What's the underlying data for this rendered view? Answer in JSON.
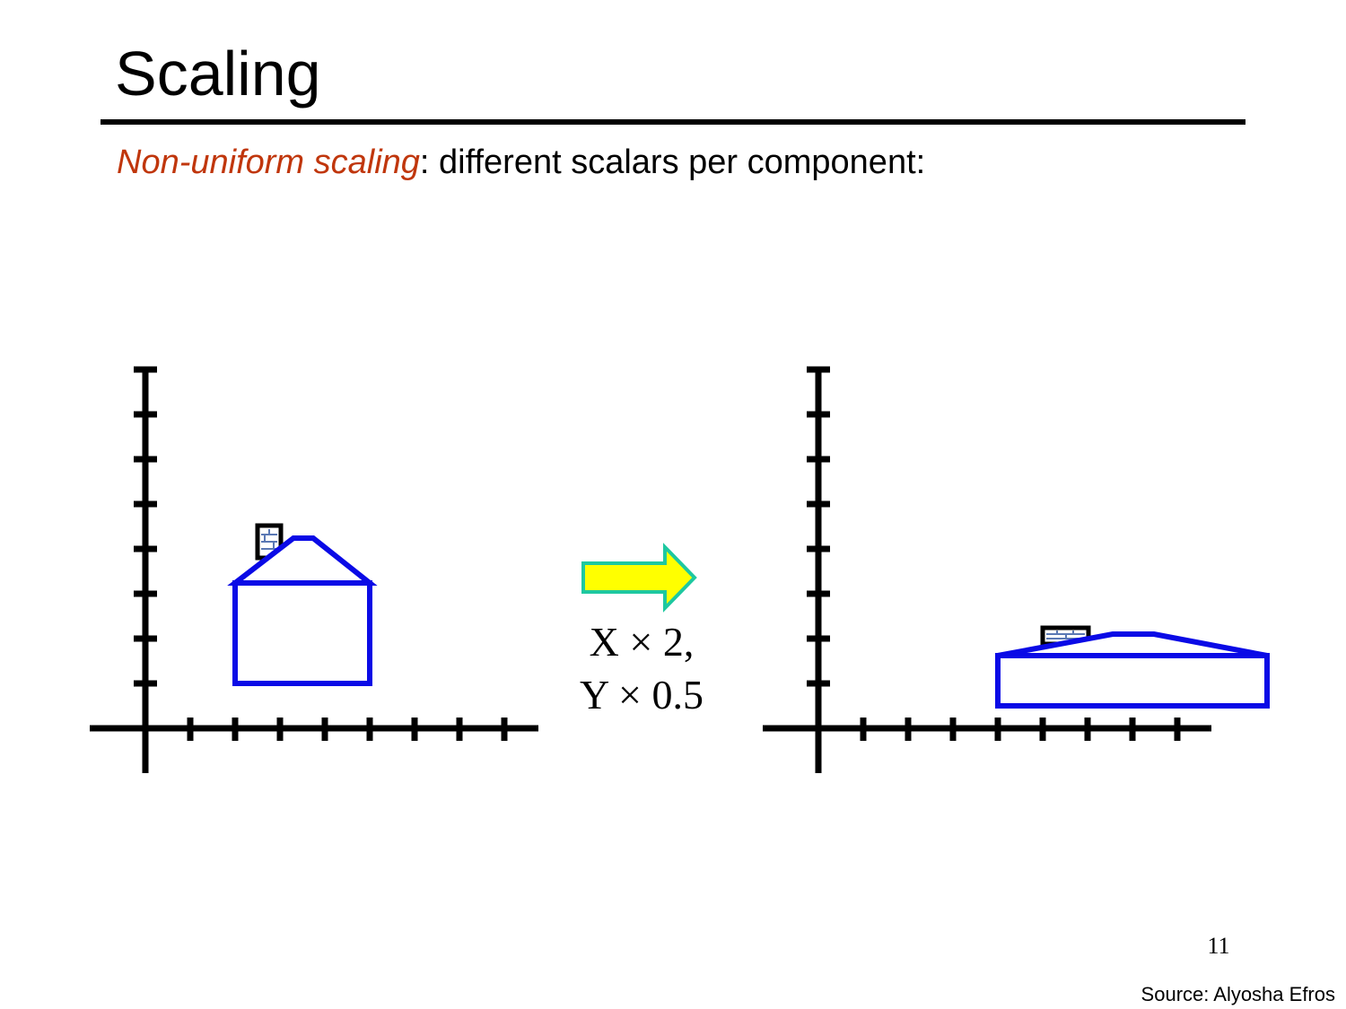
{
  "slide": {
    "title": "Scaling",
    "subtitle_emphasis": "Non-uniform scaling",
    "subtitle_rest": ": different scalars per component:",
    "transform_line1": "X × 2,",
    "transform_line2": "Y × 0.5",
    "page_number": "11",
    "source": "Source: Alyosha Efros"
  },
  "colors": {
    "emphasis": "#c0360c",
    "house": "#0a0ae6",
    "axes": "#000000",
    "arrow_fill": "#ffff00",
    "arrow_stroke": "#1ec8a0",
    "chimney_bricks": "#5a78b4"
  },
  "icons": {
    "transform_arrow": "right-arrow-icon",
    "chimney": "brick-chimney-icon"
  }
}
